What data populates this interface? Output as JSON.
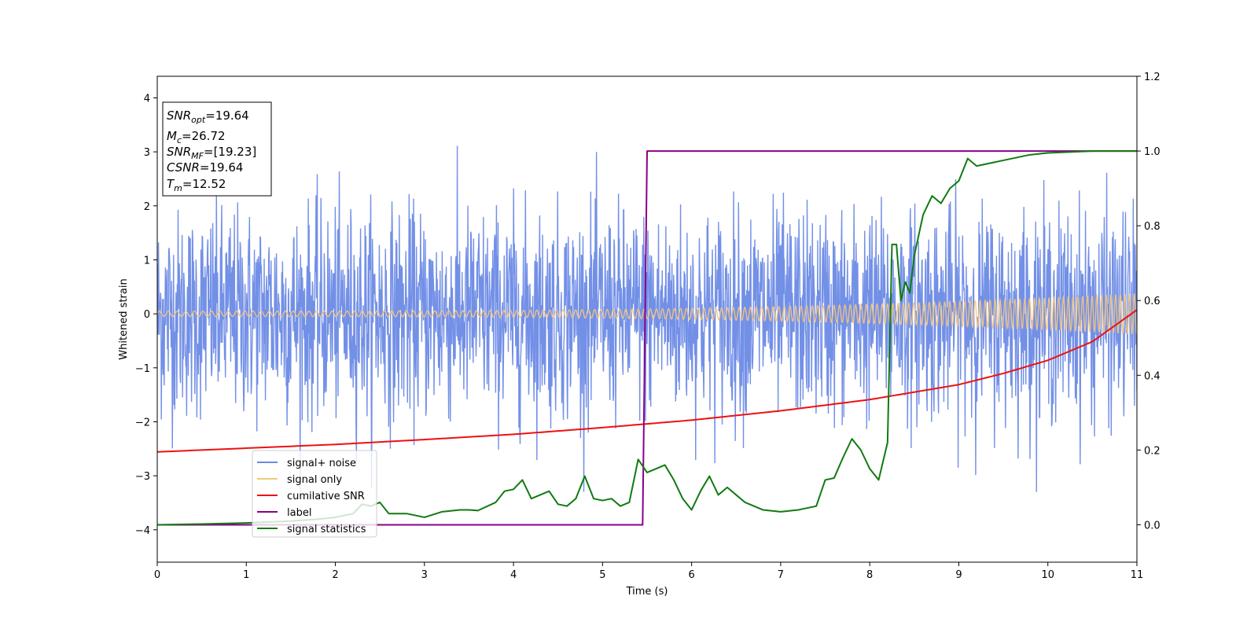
{
  "chart_data": {
    "type": "line",
    "title": "",
    "xlabel": "Time (s)",
    "ylabel_left": "Whitened strain",
    "ylabel_right": "",
    "xlim": [
      0,
      11
    ],
    "ylim_left": [
      -4.6,
      4.4
    ],
    "ylim_right": [
      -0.1,
      1.2
    ],
    "x_ticks": [
      0,
      1,
      2,
      3,
      4,
      5,
      6,
      7,
      8,
      9,
      10,
      11
    ],
    "y_ticks_left": [
      -4,
      -3,
      -2,
      -1,
      0,
      1,
      2,
      3,
      4
    ],
    "y_ticks_right": [
      0.0,
      0.2,
      0.4,
      0.6,
      0.8,
      1.0,
      1.2
    ],
    "y_ticks_right_labels": [
      "0.0",
      "0.2",
      "0.4",
      "0.6",
      "0.8",
      "1.0",
      "1.2"
    ],
    "grid": false,
    "legend_position": "lower-left",
    "info_box": {
      "snr_opt_base": "SNR",
      "snr_opt_sub": "opt",
      "snr_opt_value": "=19.64",
      "mc_base": "M",
      "mc_sub": "c",
      "mc_value": "=26.72",
      "snr_mf_base": "SNR",
      "snr_mf_sub": "MF",
      "snr_mf_value": "=[19.23]",
      "csnr_base": "CSNR",
      "csnr_value": "=19.64",
      "tm_base": "T",
      "tm_sub": "m",
      "tm_value": "=12.52"
    },
    "series": [
      {
        "name": "signal+ noise",
        "axis": "left",
        "color": "#6b8ae6",
        "style": "noise",
        "approx_std": 0.95,
        "approx_range": [
          -3.3,
          4.0
        ]
      },
      {
        "name": "signal only",
        "axis": "left",
        "color": "#f5c77e",
        "style": "chirp",
        "amplitude_start": 0.05,
        "amplitude_end": 0.38
      },
      {
        "name": "cumilative SNR",
        "axis": "right",
        "color": "#ee1111",
        "x": [
          0,
          1,
          2,
          3,
          4,
          5,
          6,
          7,
          8,
          9,
          9.5,
          10,
          10.5,
          11
        ],
        "y": [
          0.195,
          0.205,
          0.215,
          0.228,
          0.242,
          0.26,
          0.28,
          0.305,
          0.335,
          0.375,
          0.405,
          0.44,
          0.49,
          0.575
        ]
      },
      {
        "name": "label",
        "axis": "right",
        "color": "#880088",
        "x": [
          0,
          5.45,
          5.5,
          11
        ],
        "y": [
          0.0,
          0.0,
          1.0,
          1.0
        ]
      },
      {
        "name": "signal statistics",
        "axis": "right",
        "color": "#117a11",
        "x": [
          0,
          0.5,
          1,
          1.5,
          1.8,
          2,
          2.2,
          2.3,
          2.4,
          2.5,
          2.6,
          2.8,
          3,
          3.2,
          3.4,
          3.5,
          3.6,
          3.8,
          3.9,
          4,
          4.1,
          4.2,
          4.3,
          4.4,
          4.5,
          4.6,
          4.7,
          4.8,
          4.9,
          5,
          5.1,
          5.2,
          5.3,
          5.4,
          5.5,
          5.6,
          5.7,
          5.8,
          5.9,
          6,
          6.1,
          6.2,
          6.3,
          6.4,
          6.5,
          6.6,
          6.8,
          7,
          7.2,
          7.4,
          7.5,
          7.6,
          7.7,
          7.8,
          7.9,
          8,
          8.1,
          8.2,
          8.25,
          8.3,
          8.35,
          8.4,
          8.45,
          8.5,
          8.6,
          8.7,
          8.8,
          8.9,
          9,
          9.1,
          9.2,
          9.4,
          9.6,
          9.8,
          10,
          10.5,
          11
        ],
        "y": [
          0.0,
          0.002,
          0.005,
          0.01,
          0.015,
          0.02,
          0.03,
          0.055,
          0.05,
          0.06,
          0.03,
          0.03,
          0.02,
          0.035,
          0.04,
          0.04,
          0.038,
          0.06,
          0.09,
          0.095,
          0.12,
          0.07,
          0.08,
          0.09,
          0.055,
          0.05,
          0.07,
          0.13,
          0.07,
          0.065,
          0.07,
          0.05,
          0.06,
          0.175,
          0.14,
          0.15,
          0.16,
          0.12,
          0.07,
          0.04,
          0.09,
          0.13,
          0.08,
          0.1,
          0.08,
          0.06,
          0.04,
          0.035,
          0.04,
          0.05,
          0.12,
          0.125,
          0.18,
          0.23,
          0.2,
          0.15,
          0.12,
          0.22,
          0.75,
          0.75,
          0.6,
          0.65,
          0.62,
          0.72,
          0.83,
          0.88,
          0.86,
          0.9,
          0.92,
          0.98,
          0.96,
          0.97,
          0.98,
          0.99,
          0.995,
          1.0,
          1.0
        ]
      }
    ]
  }
}
